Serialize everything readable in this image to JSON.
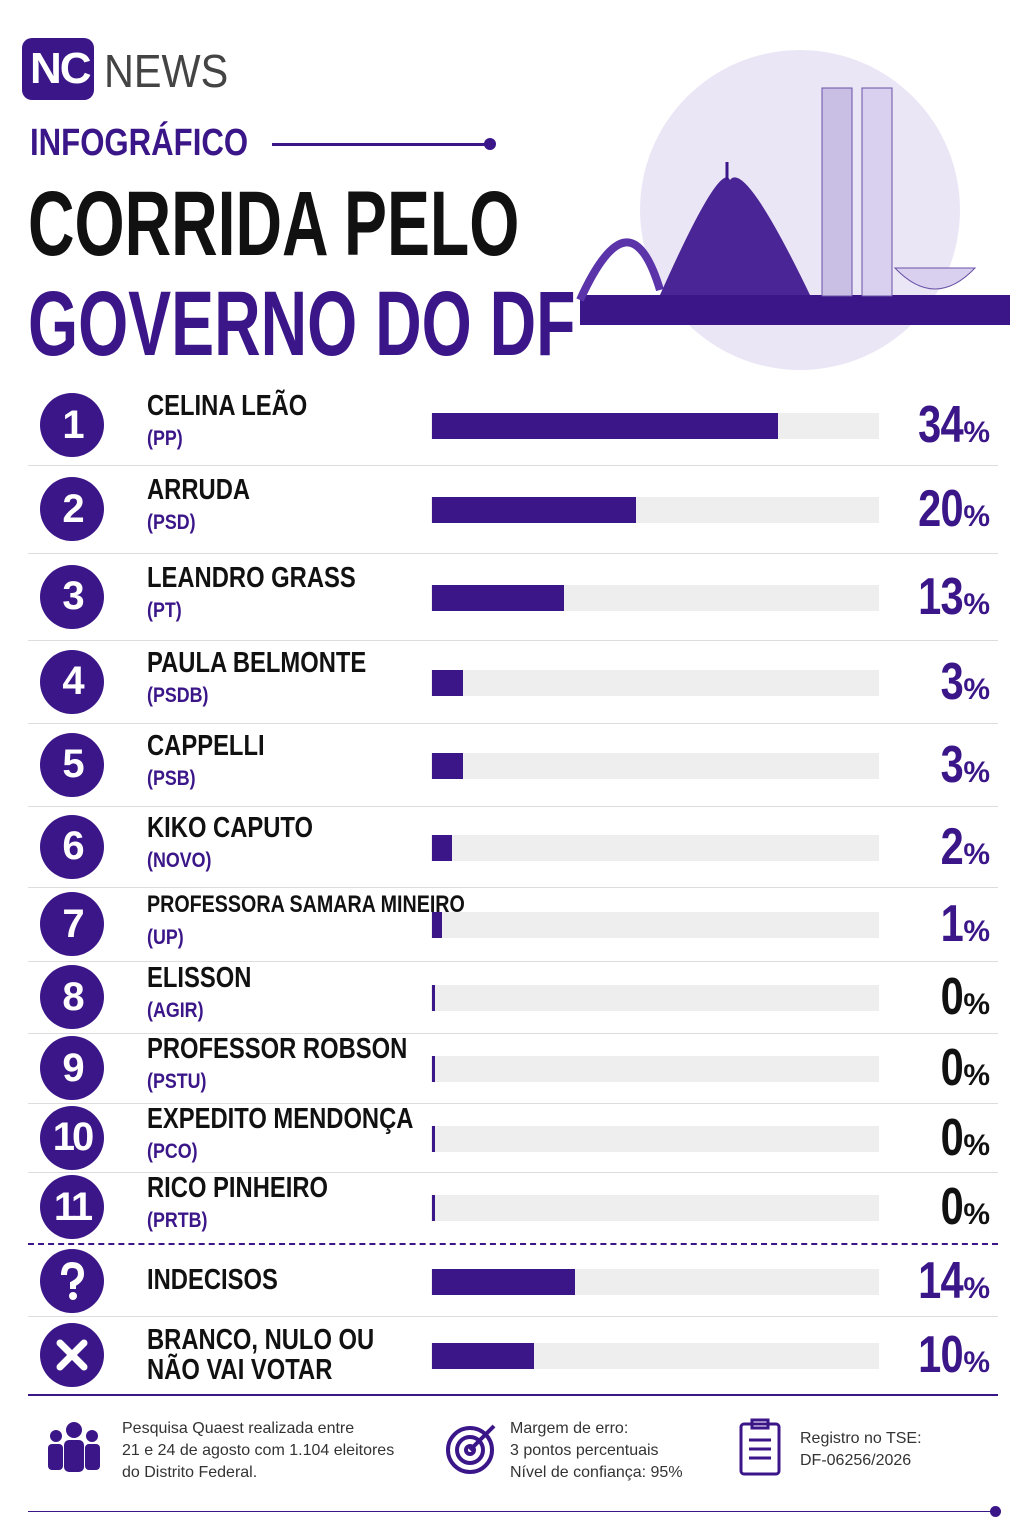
{
  "header": {
    "logo": "NC",
    "brand": "NEWS",
    "kicker": "INFOGRÁFICO",
    "title_line1": "CORRIDA PELO",
    "title_line2": "GOVERNO DO DF"
  },
  "chart_data": {
    "type": "bar",
    "orientation": "horizontal",
    "color": "#3b1689",
    "track_color": "#eeeeee",
    "ranks": [
      1,
      2,
      3,
      4,
      5,
      6,
      7,
      8,
      9,
      10,
      11,
      null,
      null
    ],
    "categories": [
      "CELINA LEÃO",
      "ARRUDA",
      "LEANDRO GRASS",
      "PAULA BELMONTE",
      "CAPPELLI",
      "KIKO CAPUTO",
      "PROFESSORA SAMARA MINEIRO",
      "ELISSON",
      "PROFESSOR ROBSON",
      "EXPEDITO MENDONÇA",
      "RICO PINHEIRO",
      "INDECISOS",
      "BRANCO, NULO OU\nNÃO VAI VOTAR"
    ],
    "parties": [
      "(PP)",
      "(PSD)",
      "(PT)",
      "(PSDB)",
      "(PSB)",
      "(NOVO)",
      "(UP)",
      "(AGIR)",
      "(PSTU)",
      "(PCO)",
      "(PRTB)",
      null,
      null
    ],
    "values": [
      34,
      20,
      13,
      3,
      3,
      2,
      1,
      0,
      0,
      0,
      0,
      14,
      10
    ],
    "value_labels": [
      "34%",
      "20%",
      "13%",
      "3%",
      "3%",
      "2%",
      "1%",
      "0%",
      "0%",
      "0%",
      "0%",
      "14%",
      "10%"
    ],
    "xlim": [
      0,
      44
    ]
  },
  "footer": {
    "survey": "Pesquisa Quaest realizada entre\n21 e 24 de agosto com 1.104 eleitores\ndo Distrito Federal.",
    "margin": "Margem de erro:\n3 pontos percentuais\nNível de confiança: 95%",
    "registry": "Registro no TSE:\nDF-06256/2026"
  }
}
